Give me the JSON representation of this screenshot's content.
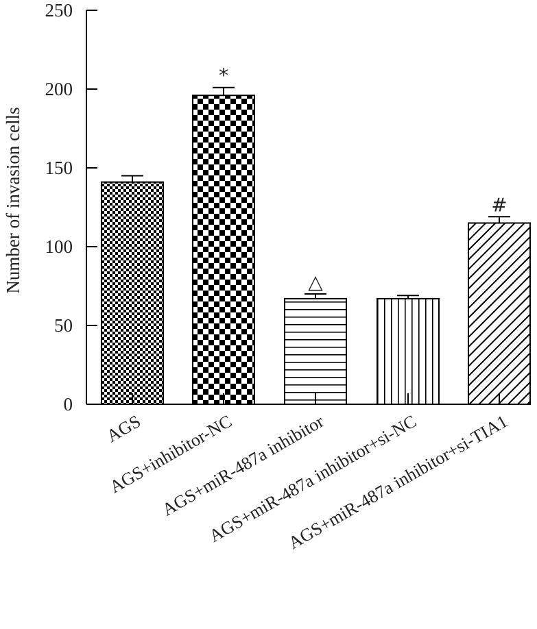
{
  "chart_data": {
    "type": "bar",
    "title": "",
    "xlabel": "",
    "ylabel": "Number of invasion cells",
    "ylim": [
      0,
      250
    ],
    "yticks": [
      0,
      50,
      100,
      150,
      200,
      250
    ],
    "categories": [
      "AGS",
      "AGS+inhibitor-NC",
      "AGS+miR-487a inhibitor",
      "AGS+miR-487a inhibitor+si-NC",
      "AGS+miR-487a inhibitor+si-TIA1"
    ],
    "values": [
      141,
      196,
      67,
      67,
      115
    ],
    "errors": [
      4,
      5,
      3,
      2,
      4
    ],
    "annotations": [
      "",
      "*",
      "△",
      "",
      "#"
    ],
    "patterns": [
      "fine-checker",
      "large-checker",
      "horizontal-lines",
      "vertical-lines",
      "diagonal-lines"
    ],
    "grid": false,
    "legend": "none"
  }
}
